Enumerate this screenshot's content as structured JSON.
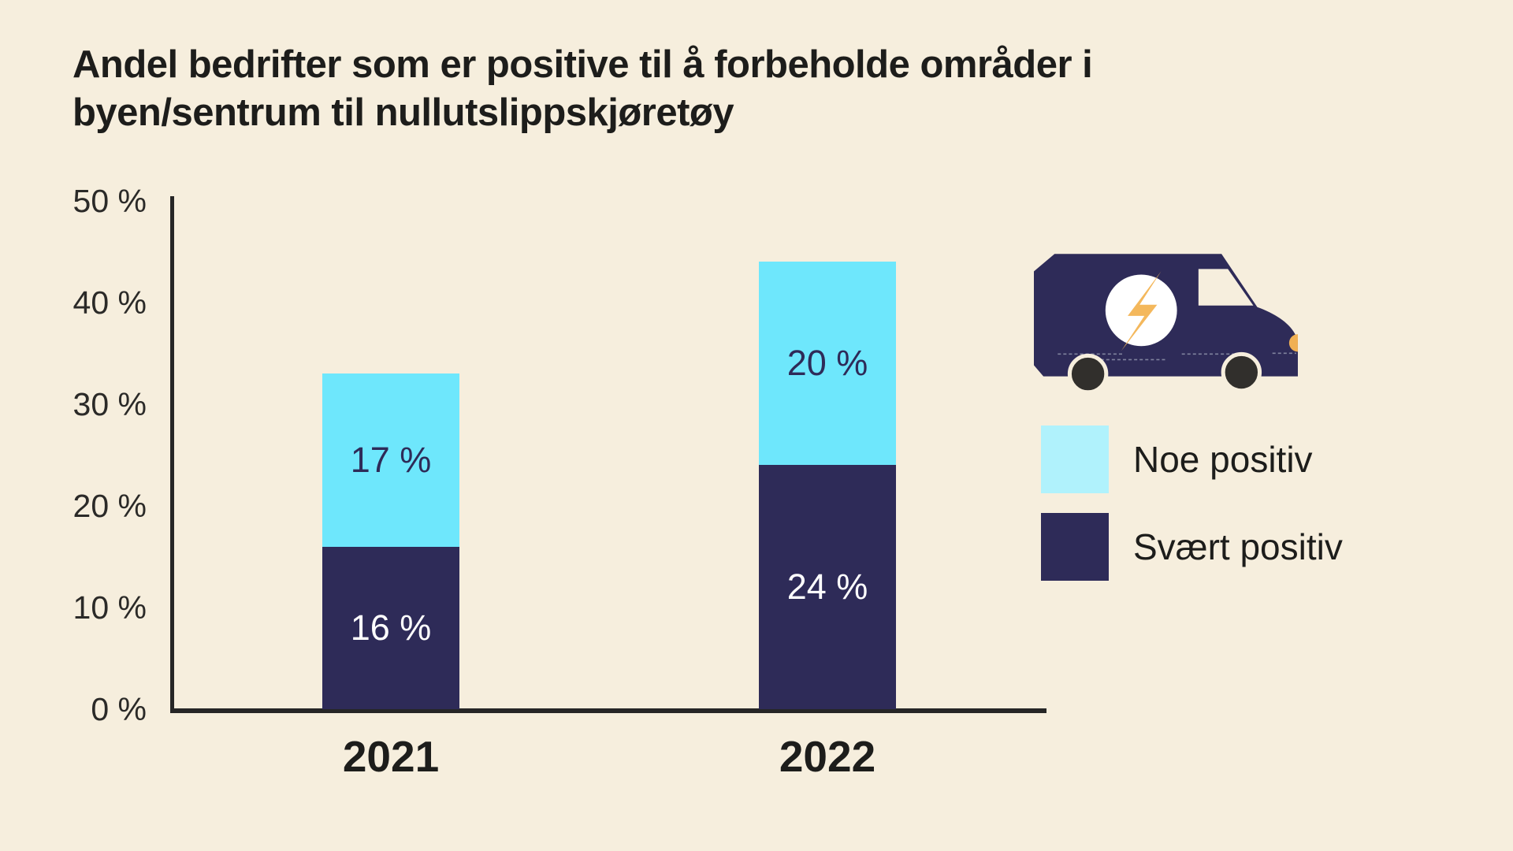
{
  "title": {
    "line1": "Andel bedrifter som er positive til å forbeholde områder i",
    "line2": "byen/sentrum til nullutslippskjøretøy"
  },
  "chart_data": {
    "type": "bar",
    "stacked": true,
    "title": "Andel bedrifter som er positive til å forbeholde områder i byen/sentrum til nullutslippskjøretøy",
    "categories": [
      "2021",
      "2022"
    ],
    "series": [
      {
        "name": "Svært positiv",
        "values": [
          16,
          24
        ],
        "color": "#2e2b58",
        "label_color": "#ffffff"
      },
      {
        "name": "Noe positiv",
        "values": [
          17,
          20
        ],
        "color": "#6ee7fc",
        "label_color": "#2e2b58"
      }
    ],
    "value_label_suffix": " %",
    "xlabel": "",
    "ylabel": "",
    "ylim": [
      0,
      50
    ],
    "y_ticks": [
      0,
      10,
      20,
      30,
      40,
      50
    ],
    "y_tick_suffix": " %",
    "grid": false,
    "legend_position": "right",
    "legend": [
      {
        "label": "Noe positiv",
        "color": "#b0f2fc"
      },
      {
        "label": "Svært positiv",
        "color": "#2e2b58"
      }
    ]
  },
  "icons": {
    "van": "electric-delivery-van-icon",
    "bolt": "lightning-bolt-icon"
  },
  "colors": {
    "background": "#f6eedd",
    "bar_cyan": "#6ee7fc",
    "bar_navy": "#2e2b58",
    "legend_cyan": "#b0f2fc",
    "text_dark": "#1d1d1b",
    "axis": "#262626",
    "accent_orange": "#f4b85c",
    "wheel_dark": "#312f2c",
    "white": "#ffffff"
  }
}
